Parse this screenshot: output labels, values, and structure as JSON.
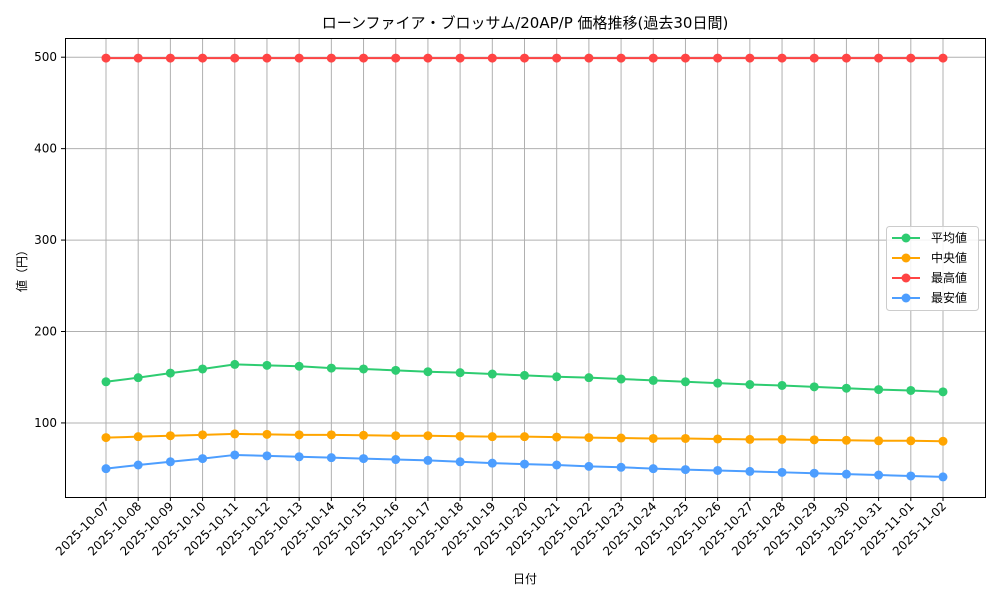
{
  "chart_data": {
    "type": "line",
    "title": "ローンファイア・ブロッサム/20AP/P 価格推移(過去30日間)",
    "xlabel": "日付",
    "ylabel": "値（円）",
    "ylim": [
      19,
      521
    ],
    "yticks": [
      100,
      200,
      300,
      400,
      500
    ],
    "grid": true,
    "legend": "center-right",
    "x": [
      "2025-10-07",
      "2025-10-08",
      "2025-10-09",
      "2025-10-10",
      "2025-10-11",
      "2025-10-12",
      "2025-10-13",
      "2025-10-14",
      "2025-10-15",
      "2025-10-16",
      "2025-10-17",
      "2025-10-18",
      "2025-10-19",
      "2025-10-20",
      "2025-10-21",
      "2025-10-22",
      "2025-10-23",
      "2025-10-24",
      "2025-10-25",
      "2025-10-26",
      "2025-10-27",
      "2025-10-28",
      "2025-10-29",
      "2025-10-30",
      "2025-10-31",
      "2025-11-01",
      "2025-11-02"
    ],
    "series": [
      {
        "name": "平均値",
        "color": "#2ecc71",
        "values": [
          145,
          149.5,
          154.5,
          159,
          164,
          163,
          162,
          160,
          159,
          157.5,
          156,
          155,
          153.5,
          152,
          150.5,
          149.5,
          148,
          146.5,
          145,
          143.5,
          142,
          141,
          139.5,
          138,
          136.5,
          135.5,
          134
        ]
      },
      {
        "name": "中央値",
        "color": "#ffa500",
        "values": [
          84,
          85,
          86,
          87,
          88,
          87.5,
          87,
          87,
          86.5,
          86,
          86,
          85.5,
          85,
          85,
          84.5,
          84,
          83.5,
          83,
          83,
          82.5,
          82,
          82,
          81.5,
          81,
          80.5,
          80.5,
          80
        ]
      },
      {
        "name": "最高値",
        "color": "#ff4444",
        "values": [
          499,
          499,
          499,
          499,
          499,
          499,
          499,
          499,
          499,
          499,
          499,
          499,
          499,
          499,
          499,
          499,
          499,
          499,
          499,
          499,
          499,
          499,
          499,
          499,
          499,
          499,
          499
        ]
      },
      {
        "name": "最安値",
        "color": "#4d9eff",
        "values": [
          50,
          54,
          57.5,
          61,
          65,
          64,
          63,
          62,
          61,
          60,
          59,
          57.5,
          56,
          55,
          54,
          52.5,
          51.5,
          50,
          49,
          48,
          47,
          46,
          45,
          44,
          43,
          42,
          41
        ]
      }
    ]
  }
}
